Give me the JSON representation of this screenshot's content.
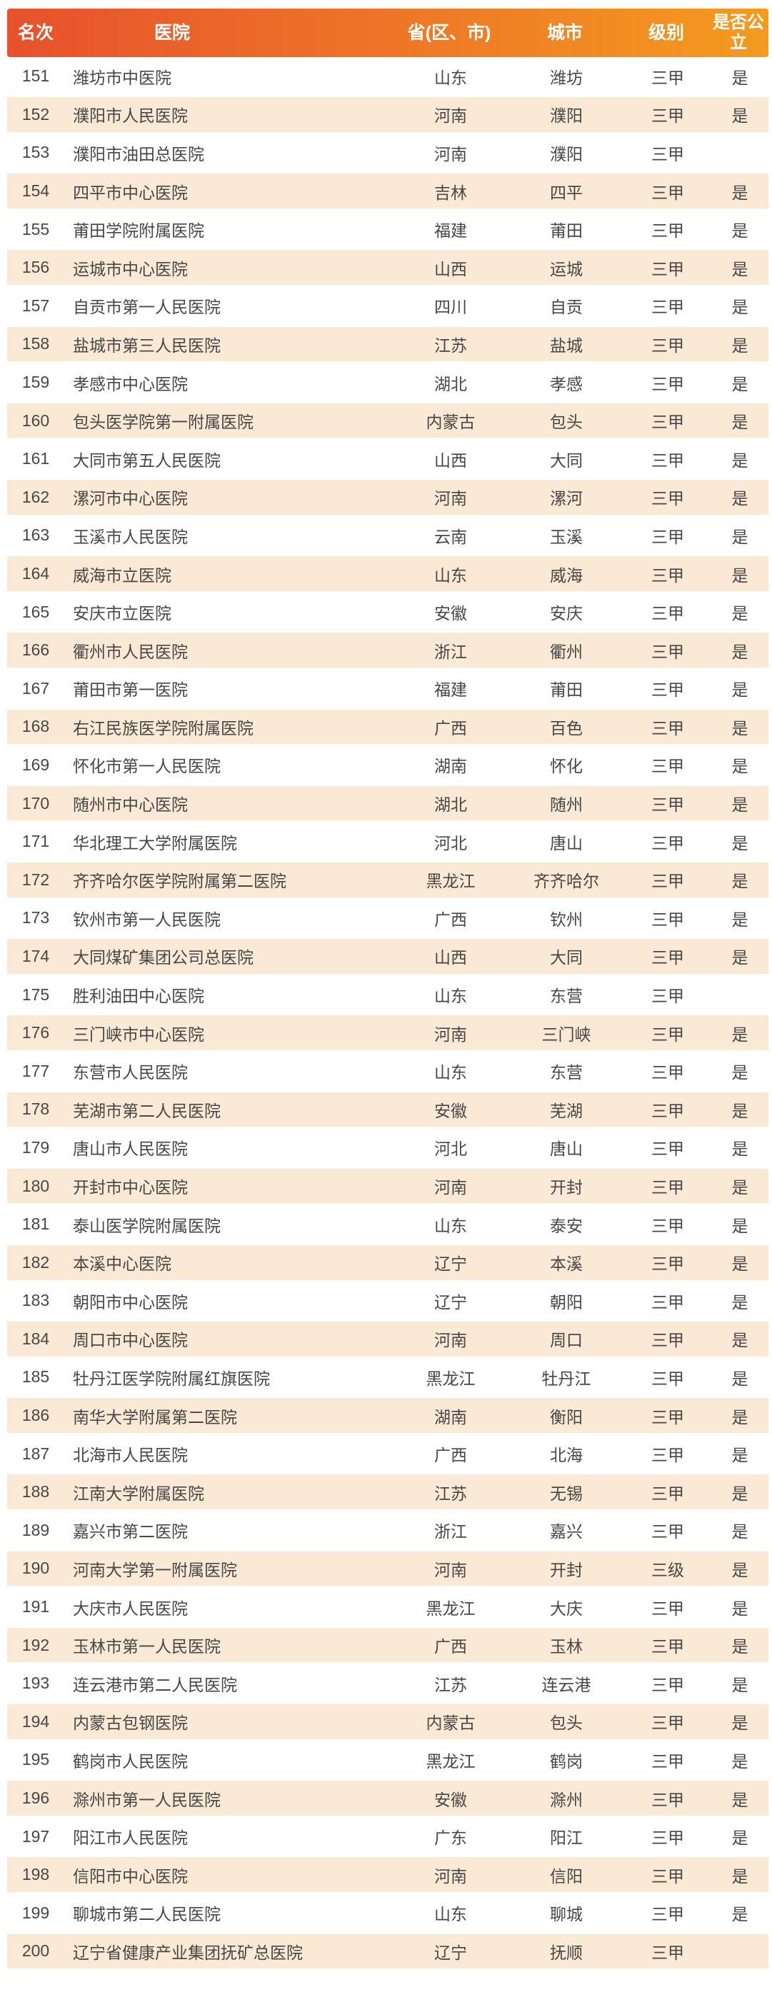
{
  "table": {
    "columns": [
      {
        "key": "rank",
        "label": "名次"
      },
      {
        "key": "hospital",
        "label": "医院"
      },
      {
        "key": "province",
        "label": "省(区、市)"
      },
      {
        "key": "city",
        "label": "城市"
      },
      {
        "key": "level",
        "label": "级别"
      },
      {
        "key": "public",
        "label": "是否公立"
      }
    ],
    "rows": [
      [
        "151",
        "潍坊市中医院",
        "山东",
        "潍坊",
        "三甲",
        "是"
      ],
      [
        "152",
        "濮阳市人民医院",
        "河南",
        "濮阳",
        "三甲",
        "是"
      ],
      [
        "153",
        "濮阳市油田总医院",
        "河南",
        "濮阳",
        "三甲",
        ""
      ],
      [
        "154",
        "四平市中心医院",
        "吉林",
        "四平",
        "三甲",
        "是"
      ],
      [
        "155",
        "莆田学院附属医院",
        "福建",
        "莆田",
        "三甲",
        "是"
      ],
      [
        "156",
        "运城市中心医院",
        "山西",
        "运城",
        "三甲",
        "是"
      ],
      [
        "157",
        "自贡市第一人民医院",
        "四川",
        "自贡",
        "三甲",
        "是"
      ],
      [
        "158",
        "盐城市第三人民医院",
        "江苏",
        "盐城",
        "三甲",
        "是"
      ],
      [
        "159",
        "孝感市中心医院",
        "湖北",
        "孝感",
        "三甲",
        "是"
      ],
      [
        "160",
        "包头医学院第一附属医院",
        "内蒙古",
        "包头",
        "三甲",
        "是"
      ],
      [
        "161",
        "大同市第五人民医院",
        "山西",
        "大同",
        "三甲",
        "是"
      ],
      [
        "162",
        "漯河市中心医院",
        "河南",
        "漯河",
        "三甲",
        "是"
      ],
      [
        "163",
        "玉溪市人民医院",
        "云南",
        "玉溪",
        "三甲",
        "是"
      ],
      [
        "164",
        "威海市立医院",
        "山东",
        "威海",
        "三甲",
        "是"
      ],
      [
        "165",
        "安庆市立医院",
        "安徽",
        "安庆",
        "三甲",
        "是"
      ],
      [
        "166",
        "衢州市人民医院",
        "浙江",
        "衢州",
        "三甲",
        "是"
      ],
      [
        "167",
        "莆田市第一医院",
        "福建",
        "莆田",
        "三甲",
        "是"
      ],
      [
        "168",
        "右江民族医学院附属医院",
        "广西",
        "百色",
        "三甲",
        "是"
      ],
      [
        "169",
        "怀化市第一人民医院",
        "湖南",
        "怀化",
        "三甲",
        "是"
      ],
      [
        "170",
        "随州市中心医院",
        "湖北",
        "随州",
        "三甲",
        "是"
      ],
      [
        "171",
        "华北理工大学附属医院",
        "河北",
        "唐山",
        "三甲",
        "是"
      ],
      [
        "172",
        "齐齐哈尔医学院附属第二医院",
        "黑龙江",
        "齐齐哈尔",
        "三甲",
        "是"
      ],
      [
        "173",
        "钦州市第一人民医院",
        "广西",
        "钦州",
        "三甲",
        "是"
      ],
      [
        "174",
        "大同煤矿集团公司总医院",
        "山西",
        "大同",
        "三甲",
        "是"
      ],
      [
        "175",
        "胜利油田中心医院",
        "山东",
        "东营",
        "三甲",
        ""
      ],
      [
        "176",
        "三门峡市中心医院",
        "河南",
        "三门峡",
        "三甲",
        "是"
      ],
      [
        "177",
        "东营市人民医院",
        "山东",
        "东营",
        "三甲",
        "是"
      ],
      [
        "178",
        "芜湖市第二人民医院",
        "安徽",
        "芜湖",
        "三甲",
        "是"
      ],
      [
        "179",
        "唐山市人民医院",
        "河北",
        "唐山",
        "三甲",
        "是"
      ],
      [
        "180",
        "开封市中心医院",
        "河南",
        "开封",
        "三甲",
        "是"
      ],
      [
        "181",
        "泰山医学院附属医院",
        "山东",
        "泰安",
        "三甲",
        "是"
      ],
      [
        "182",
        "本溪中心医院",
        "辽宁",
        "本溪",
        "三甲",
        "是"
      ],
      [
        "183",
        "朝阳市中心医院",
        "辽宁",
        "朝阳",
        "三甲",
        "是"
      ],
      [
        "184",
        "周口市中心医院",
        "河南",
        "周口",
        "三甲",
        "是"
      ],
      [
        "185",
        "牡丹江医学院附属红旗医院",
        "黑龙江",
        "牡丹江",
        "三甲",
        "是"
      ],
      [
        "186",
        "南华大学附属第二医院",
        "湖南",
        "衡阳",
        "三甲",
        "是"
      ],
      [
        "187",
        "北海市人民医院",
        "广西",
        "北海",
        "三甲",
        "是"
      ],
      [
        "188",
        "江南大学附属医院",
        "江苏",
        "无锡",
        "三甲",
        "是"
      ],
      [
        "189",
        "嘉兴市第二医院",
        "浙江",
        "嘉兴",
        "三甲",
        "是"
      ],
      [
        "190",
        "河南大学第一附属医院",
        "河南",
        "开封",
        "三级",
        "是"
      ],
      [
        "191",
        "大庆市人民医院",
        "黑龙江",
        "大庆",
        "三甲",
        "是"
      ],
      [
        "192",
        "玉林市第一人民医院",
        "广西",
        "玉林",
        "三甲",
        "是"
      ],
      [
        "193",
        "连云港市第二人民医院",
        "江苏",
        "连云港",
        "三甲",
        "是"
      ],
      [
        "194",
        "内蒙古包钢医院",
        "内蒙古",
        "包头",
        "三甲",
        "是"
      ],
      [
        "195",
        "鹤岗市人民医院",
        "黑龙江",
        "鹤岗",
        "三甲",
        "是"
      ],
      [
        "196",
        "滁州市第一人民医院",
        "安徽",
        "滁州",
        "三甲",
        "是"
      ],
      [
        "197",
        "阳江市人民医院",
        "广东",
        "阳江",
        "三甲",
        "是"
      ],
      [
        "198",
        "信阳市中心医院",
        "河南",
        "信阳",
        "三甲",
        "是"
      ],
      [
        "199",
        "聊城市第二人民医院",
        "山东",
        "聊城",
        "三甲",
        "是"
      ],
      [
        "200",
        "辽宁省健康产业集团抚矿总医院",
        "辽宁",
        "抚顺",
        "三甲",
        ""
      ]
    ]
  },
  "colors": {
    "header_gradient_start": "#e7512d",
    "header_gradient_end": "#f49b1f",
    "header_text": "#ffffff",
    "row_alt_background": "#fae9d4",
    "row_text": "#474747"
  }
}
